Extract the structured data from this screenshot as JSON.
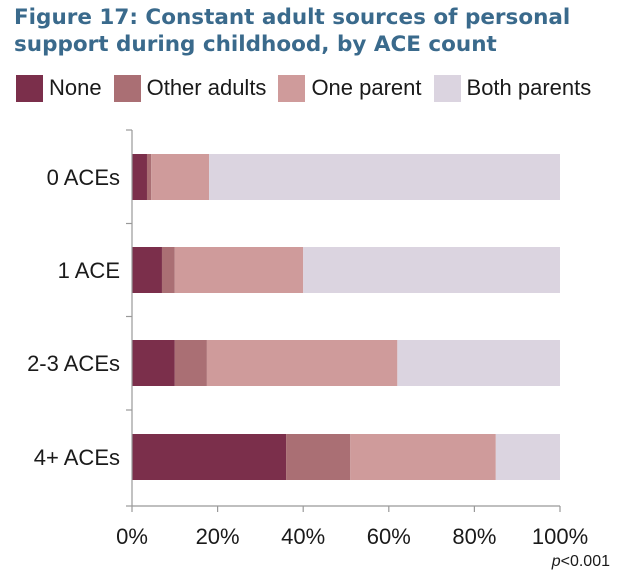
{
  "title_lines": [
    "Figure 17: Constant adult sources of personal",
    "support during childhood, by ACE count"
  ],
  "note": {
    "p": "p",
    "rest": "<0.001"
  },
  "chart_data": {
    "type": "bar",
    "orientation": "horizontal",
    "stacked": true,
    "title": "Figure 17: Constant adult sources of personal support during childhood, by ACE count",
    "categories": [
      "0 ACEs",
      "1 ACE",
      "2-3 ACEs",
      "4+ ACEs"
    ],
    "series": [
      {
        "name": "None",
        "color": "#7b2f4b",
        "values": [
          3.5,
          7,
          10,
          36
        ]
      },
      {
        "name": "Other adults",
        "color": "#aa6f74",
        "values": [
          1,
          3,
          7.5,
          15
        ]
      },
      {
        "name": "One parent",
        "color": "#cf9b9b",
        "values": [
          13.5,
          30,
          44.5,
          34
        ]
      },
      {
        "name": "Both parents",
        "color": "#dbd4e0",
        "values": [
          82,
          60,
          38,
          15
        ]
      }
    ],
    "xlim": [
      0,
      100
    ],
    "xticks": [
      "0%",
      "20%",
      "40%",
      "60%",
      "80%",
      "100%"
    ],
    "xlabel": "",
    "ylabel": "",
    "grid": false,
    "legend": "top"
  }
}
